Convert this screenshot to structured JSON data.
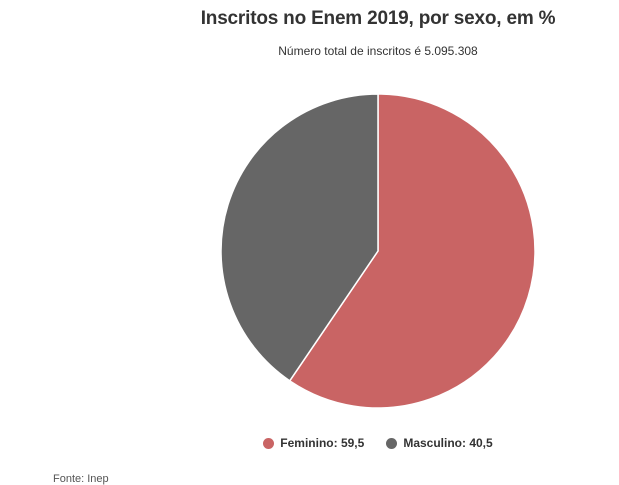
{
  "chart_data": {
    "type": "pie",
    "title": "Inscritos no Enem 2019, por sexo, em %",
    "subtitle": "Número total de inscritos é 5.095.308",
    "slices": [
      {
        "name": "Feminino",
        "value": 59.5,
        "color": "#c96464",
        "label": "Feminino: 59,5"
      },
      {
        "name": "Masculino",
        "value": 40.5,
        "color": "#666666",
        "label": "Masculino: 40,5"
      }
    ],
    "legend_position": "bottom",
    "source": "Fonte: Inep"
  }
}
